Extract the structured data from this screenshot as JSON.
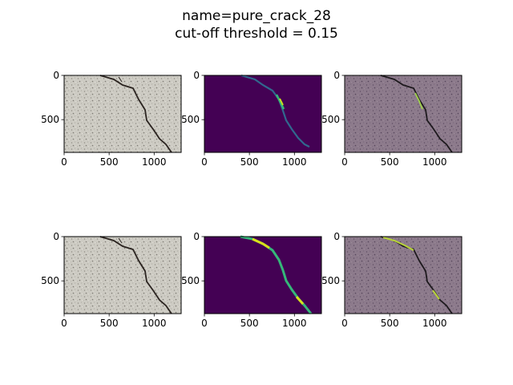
{
  "figure": {
    "title_line1": "name=pure_crack_28",
    "title_line2": "cut-off threshold = 0.15"
  },
  "axes": {
    "x_ticks": [
      "0",
      "500",
      "1000"
    ],
    "y_ticks": [
      "0",
      "500"
    ],
    "x_tick_values": [
      0,
      500,
      1000
    ],
    "y_tick_values": [
      0,
      500
    ],
    "xlim": [
      0,
      1300
    ],
    "ylim": [
      870,
      0
    ]
  },
  "panels": [
    {
      "row": 1,
      "col": 1,
      "kind": "image"
    },
    {
      "row": 1,
      "col": 2,
      "kind": "prediction-heatmap"
    },
    {
      "row": 1,
      "col": 3,
      "kind": "overlay"
    },
    {
      "row": 2,
      "col": 1,
      "kind": "image"
    },
    {
      "row": 2,
      "col": 2,
      "kind": "ground-truth-mask"
    },
    {
      "row": 2,
      "col": 3,
      "kind": "overlay"
    }
  ],
  "colors": {
    "concrete": "#cdcbc3",
    "crack": "#2b2420",
    "viridis_bg": "#440154",
    "viridis_mid": "#31688e",
    "viridis_high": "#35b779",
    "viridis_peak": "#fde725",
    "overlay": "#8d7b8c"
  }
}
